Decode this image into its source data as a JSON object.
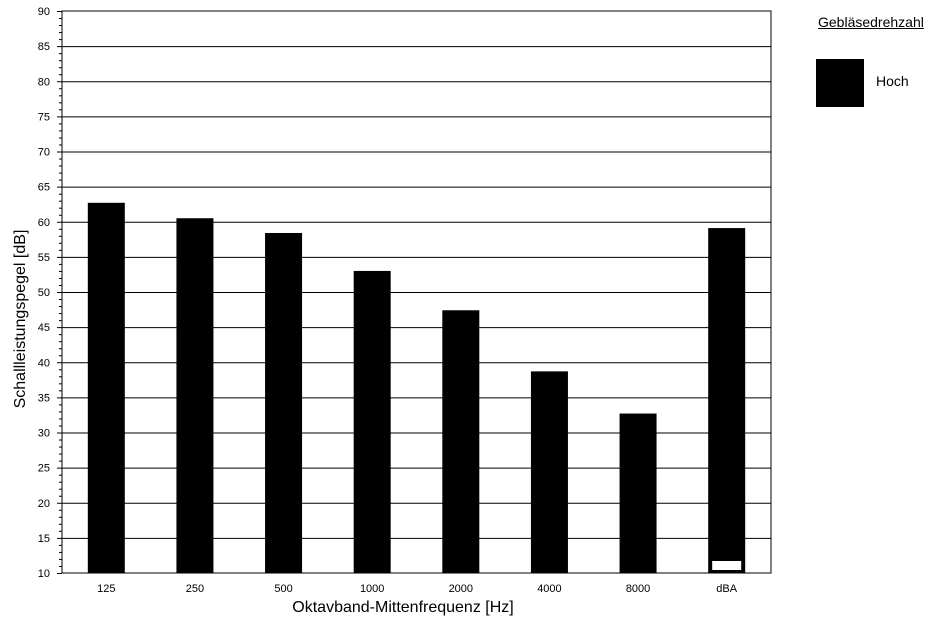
{
  "chart_data": {
    "type": "bar",
    "categories": [
      "125",
      "250",
      "500",
      "1000",
      "2000",
      "4000",
      "8000",
      "dBA"
    ],
    "series": [
      {
        "name": "Hoch",
        "values": [
          62.7,
          60.5,
          58.4,
          53.0,
          47.4,
          38.7,
          32.7,
          59.1
        ],
        "color": "#000000"
      }
    ],
    "xlabel": "Oktavband-Mittenfrequenz [Hz]",
    "ylabel": "Schallleistungspegel [dB]",
    "ylim": [
      10,
      90
    ],
    "ytick_step": 5,
    "yticks": [
      "10",
      "15",
      "20",
      "25",
      "30",
      "35",
      "40",
      "45",
      "50",
      "55",
      "60",
      "65",
      "70",
      "75",
      "80",
      "85",
      "90"
    ],
    "grid": true,
    "legend": {
      "title": "Gebläsedrehzahl",
      "placement": "top-right"
    }
  }
}
